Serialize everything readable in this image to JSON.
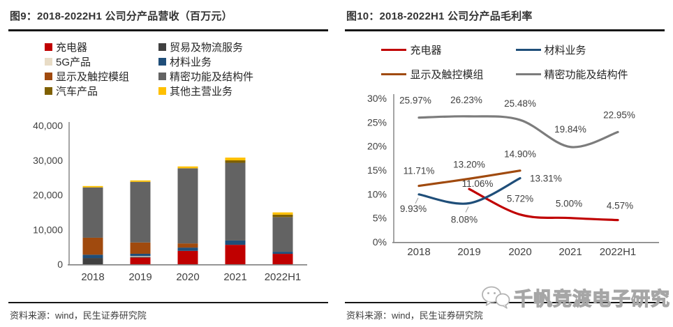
{
  "figure9": {
    "title": "图9：2018-2022H1 公司分产品营收（百万元）",
    "source": "资料来源：wind，民生证券研究院",
    "legend": [
      {
        "label": "充电器",
        "color": "#C00000"
      },
      {
        "label": "5G产品",
        "color": "#E8DCC6"
      },
      {
        "label": "显示及触控模组",
        "color": "#A04A0E"
      },
      {
        "label": "汽车产品",
        "color": "#7F6000"
      },
      {
        "label": "贸易及物流服务",
        "color": "#404040"
      },
      {
        "label": "材料业务",
        "color": "#1F4E79"
      },
      {
        "label": "精密功能及结构件",
        "color": "#636363"
      },
      {
        "label": "其他主营业务",
        "color": "#FFC000"
      }
    ]
  },
  "figure10": {
    "title": "图10：2018-2022H1 公司分产品毛利率",
    "source": "资料来源：wind，民生证券研究院",
    "legend": [
      {
        "label": "充电器",
        "color": "#C00000"
      },
      {
        "label": "材料业务",
        "color": "#1F4E79"
      },
      {
        "label": "显示及触控模组",
        "color": "#A04A0E"
      },
      {
        "label": "精密功能及结构件",
        "color": "#7C7C7C"
      }
    ]
  },
  "watermark": {
    "text": "千帆竞渡电子研究",
    "icon": "wechat-chat-bubbles"
  },
  "chart_data": [
    {
      "type": "bar",
      "stacked": true,
      "title": "图9：2018-2022H1 公司分产品营收（百万元）",
      "unit": "百万元",
      "categories": [
        "2018",
        "2019",
        "2020",
        "2021",
        "2022H1"
      ],
      "series": [
        {
          "name": "充电器",
          "color": "#C00000",
          "values": [
            0,
            1900,
            3850,
            5600,
            3000
          ]
        },
        {
          "name": "贸易及物流服务",
          "color": "#404040",
          "values": [
            1800,
            200,
            0,
            0,
            0
          ]
        },
        {
          "name": "5G产品",
          "color": "#E8DCC6",
          "values": [
            0,
            250,
            0,
            0,
            0
          ]
        },
        {
          "name": "材料业务",
          "color": "#1F4E79",
          "values": [
            950,
            670,
            950,
            1250,
            600
          ]
        },
        {
          "name": "显示及触控模组",
          "color": "#A04A0E",
          "values": [
            4900,
            3250,
            1200,
            0,
            0
          ]
        },
        {
          "name": "精密功能及结构件",
          "color": "#636363",
          "values": [
            14500,
            17500,
            21600,
            22400,
            10000
          ]
        },
        {
          "name": "汽车产品",
          "color": "#7F6000",
          "values": [
            0,
            0,
            100,
            700,
            700
          ]
        },
        {
          "name": "其他主营业务",
          "color": "#FFC000",
          "values": [
            400,
            400,
            500,
            800,
            650
          ]
        }
      ],
      "ylim": [
        0,
        40000
      ],
      "ytick_step": 10000,
      "grid": false,
      "legend_position": "top"
    },
    {
      "type": "line",
      "smooth": true,
      "title": "图10：2018-2022H1 公司分产品毛利率",
      "categories": [
        "2018",
        "2019",
        "2020",
        "2021",
        "2022H1"
      ],
      "series": [
        {
          "name": "充电器",
          "color": "#C00000",
          "values": [
            null,
            11.06,
            5.72,
            5.0,
            4.57
          ]
        },
        {
          "name": "材料业务",
          "color": "#1F4E79",
          "values": [
            9.93,
            8.08,
            13.31,
            null,
            null
          ]
        },
        {
          "name": "显示及触控模组",
          "color": "#A04A0E",
          "values": [
            11.71,
            13.2,
            14.9,
            null,
            null
          ]
        },
        {
          "name": "精密功能及结构件",
          "color": "#7C7C7C",
          "values": [
            25.97,
            26.23,
            25.48,
            19.84,
            22.95
          ]
        }
      ],
      "ylim": [
        0,
        30
      ],
      "ytick_step": 5,
      "grid": false,
      "data_labels": true,
      "legend_position": "top"
    }
  ]
}
